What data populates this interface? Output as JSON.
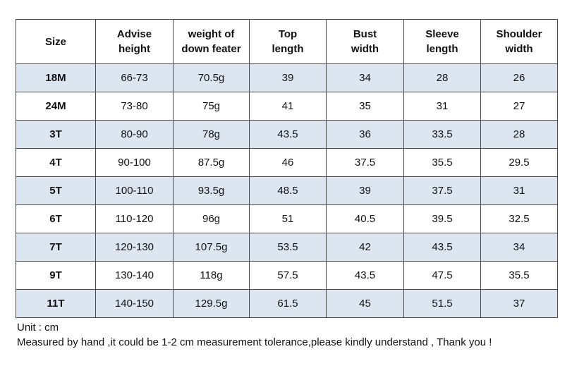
{
  "table": {
    "headers": [
      [
        "Size"
      ],
      [
        "Advise",
        "height"
      ],
      [
        "weight of",
        "down feater"
      ],
      [
        "Top",
        "length"
      ],
      [
        "Bust",
        "width"
      ],
      [
        "Sleeve",
        "length"
      ],
      [
        "Shoulder",
        "width"
      ]
    ],
    "rows": [
      [
        "18M",
        "66-73",
        "70.5g",
        "39",
        "34",
        "28",
        "26"
      ],
      [
        "24M",
        "73-80",
        "75g",
        "41",
        "35",
        "31",
        "27"
      ],
      [
        "3T",
        "80-90",
        "78g",
        "43.5",
        "36",
        "33.5",
        "28"
      ],
      [
        "4T",
        "90-100",
        "87.5g",
        "46",
        "37.5",
        "35.5",
        "29.5"
      ],
      [
        "5T",
        "100-110",
        "93.5g",
        "48.5",
        "39",
        "37.5",
        "31"
      ],
      [
        "6T",
        "110-120",
        "96g",
        "51",
        "40.5",
        "39.5",
        "32.5"
      ],
      [
        "7T",
        "120-130",
        "107.5g",
        "53.5",
        "42",
        "43.5",
        "34"
      ],
      [
        "9T",
        "130-140",
        "118g",
        "57.5",
        "43.5",
        "47.5",
        "35.5"
      ],
      [
        "11T",
        "140-150",
        "129.5g",
        "61.5",
        "45",
        "51.5",
        "37"
      ]
    ],
    "shaded_row_color": "#dce6f1",
    "border_color": "#4a4a4a"
  },
  "notes": {
    "unit": "Unit : cm",
    "disclaimer": "Measured by hand ,it could be 1-2 cm measurement tolerance,please kindly understand , Thank you !"
  }
}
